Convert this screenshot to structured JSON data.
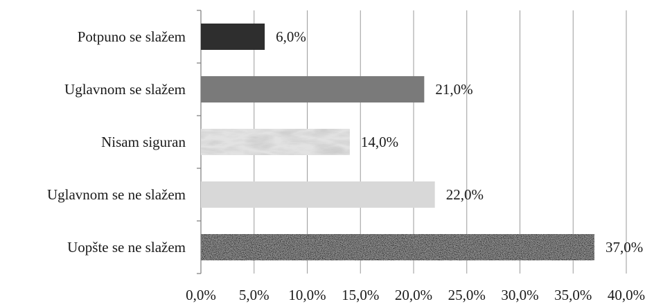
{
  "chart_data": {
    "type": "bar",
    "orientation": "horizontal",
    "categories": [
      "Potpuno se slažem",
      "Uglavnom se slažem",
      "Nisam siguran",
      "Uglavnom se ne slažem",
      "Uopšte se ne slažem"
    ],
    "values": [
      6.0,
      21.0,
      14.0,
      22.0,
      37.0
    ],
    "value_labels": [
      "6,0%",
      "21,0%",
      "14,0%",
      "22,0%",
      "37,0%"
    ],
    "bar_fills": [
      "solid-dark",
      "solid-mid",
      "marble",
      "solid-light",
      "speckled"
    ],
    "bar_colors": [
      "#2e2e2e",
      "#7a7a7a",
      "#e2e2e2",
      "#d8d8d8",
      "#8c8c8c"
    ],
    "xlim": [
      0,
      40
    ],
    "xticks": [
      0,
      5,
      10,
      15,
      20,
      25,
      30,
      35,
      40
    ],
    "xtick_labels": [
      "0,0%",
      "5,0%",
      "10,0%",
      "15,0%",
      "20,0%",
      "25,0%",
      "30,0%",
      "35,0%",
      "40,0%"
    ],
    "grid": "vertical",
    "legend": "none",
    "title": "",
    "xlabel": "",
    "ylabel": ""
  }
}
